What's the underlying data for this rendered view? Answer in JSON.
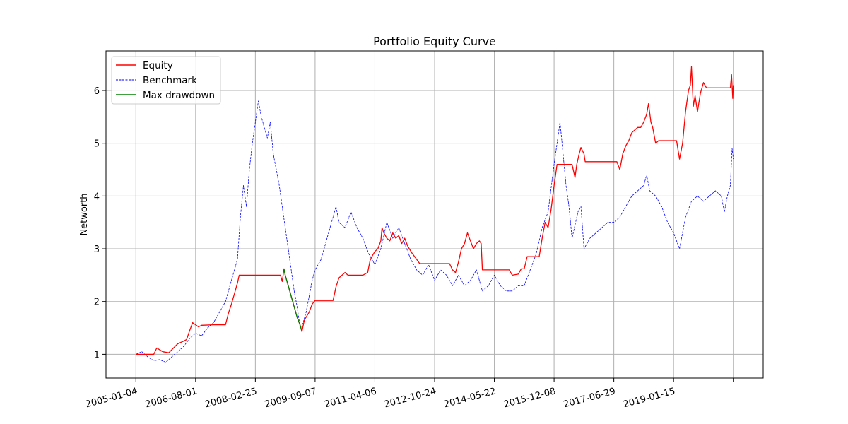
{
  "chart_data": {
    "type": "line",
    "title": "Portfolio Equity Curve",
    "xlabel": "",
    "ylabel": "Networth",
    "x_ticks": [
      "2005-01-04",
      "2006-08-01",
      "2008-02-25",
      "2009-09-07",
      "2011-04-06",
      "2012-10-24",
      "2014-05-22",
      "2015-12-08",
      "2017-06-29",
      "2019-01-15",
      ""
    ],
    "y_ticks": [
      1,
      2,
      3,
      4,
      5,
      6
    ],
    "xlim": [
      -0.5,
      10.5
    ],
    "ylim": [
      0.55,
      6.75
    ],
    "grid": true,
    "legend_position": "top-left",
    "series": [
      {
        "name": "Equity",
        "color": "#ff0000",
        "style": "solid",
        "points": [
          [
            0,
            1.0
          ],
          [
            0.15,
            1.0
          ],
          [
            0.3,
            1.0
          ],
          [
            0.35,
            1.12
          ],
          [
            0.45,
            1.05
          ],
          [
            0.55,
            1.03
          ],
          [
            0.7,
            1.2
          ],
          [
            0.8,
            1.25
          ],
          [
            0.85,
            1.28
          ],
          [
            0.9,
            1.45
          ],
          [
            0.95,
            1.6
          ],
          [
            1.05,
            1.52
          ],
          [
            1.1,
            1.55
          ],
          [
            1.3,
            1.56
          ],
          [
            1.5,
            1.56
          ],
          [
            1.55,
            1.78
          ],
          [
            1.6,
            1.95
          ],
          [
            1.65,
            2.15
          ],
          [
            1.7,
            2.35
          ],
          [
            1.73,
            2.5
          ],
          [
            1.9,
            2.5
          ],
          [
            2.1,
            2.5
          ],
          [
            2.3,
            2.5
          ],
          [
            2.42,
            2.5
          ],
          [
            2.45,
            2.38
          ],
          [
            2.48,
            2.62
          ],
          [
            2.5,
            2.5
          ],
          [
            2.55,
            2.3
          ],
          [
            2.6,
            2.1
          ],
          [
            2.65,
            1.9
          ],
          [
            2.7,
            1.7
          ],
          [
            2.75,
            1.55
          ],
          [
            2.78,
            1.43
          ],
          [
            2.82,
            1.65
          ],
          [
            2.9,
            1.8
          ],
          [
            2.95,
            1.95
          ],
          [
            3.0,
            2.02
          ],
          [
            3.2,
            2.02
          ],
          [
            3.3,
            2.02
          ],
          [
            3.35,
            2.28
          ],
          [
            3.4,
            2.45
          ],
          [
            3.45,
            2.5
          ],
          [
            3.5,
            2.55
          ],
          [
            3.55,
            2.5
          ],
          [
            3.65,
            2.5
          ],
          [
            3.8,
            2.5
          ],
          [
            3.88,
            2.55
          ],
          [
            3.92,
            2.78
          ],
          [
            3.95,
            2.85
          ],
          [
            4.0,
            2.95
          ],
          [
            4.05,
            3.0
          ],
          [
            4.1,
            3.15
          ],
          [
            4.12,
            3.4
          ],
          [
            4.15,
            3.3
          ],
          [
            4.2,
            3.2
          ],
          [
            4.25,
            3.15
          ],
          [
            4.3,
            3.3
          ],
          [
            4.35,
            3.2
          ],
          [
            4.4,
            3.25
          ],
          [
            4.45,
            3.1
          ],
          [
            4.5,
            3.2
          ],
          [
            4.55,
            3.05
          ],
          [
            4.62,
            2.92
          ],
          [
            4.7,
            2.8
          ],
          [
            4.75,
            2.72
          ],
          [
            4.9,
            2.72
          ],
          [
            5.1,
            2.72
          ],
          [
            5.2,
            2.72
          ],
          [
            5.25,
            2.72
          ],
          [
            5.3,
            2.6
          ],
          [
            5.35,
            2.55
          ],
          [
            5.4,
            2.75
          ],
          [
            5.45,
            3.0
          ],
          [
            5.5,
            3.1
          ],
          [
            5.55,
            3.3
          ],
          [
            5.6,
            3.15
          ],
          [
            5.65,
            3.0
          ],
          [
            5.7,
            3.1
          ],
          [
            5.75,
            3.15
          ],
          [
            5.78,
            3.1
          ],
          [
            5.8,
            2.6
          ],
          [
            6.0,
            2.6
          ],
          [
            6.2,
            2.6
          ],
          [
            6.25,
            2.6
          ],
          [
            6.3,
            2.5
          ],
          [
            6.4,
            2.52
          ],
          [
            6.45,
            2.62
          ],
          [
            6.5,
            2.62
          ],
          [
            6.55,
            2.85
          ],
          [
            6.7,
            2.85
          ],
          [
            6.75,
            2.85
          ],
          [
            6.8,
            3.2
          ],
          [
            6.85,
            3.5
          ],
          [
            6.9,
            3.4
          ],
          [
            6.95,
            3.75
          ],
          [
            7.0,
            4.2
          ],
          [
            7.05,
            4.6
          ],
          [
            7.15,
            4.6
          ],
          [
            7.3,
            4.6
          ],
          [
            7.35,
            4.35
          ],
          [
            7.38,
            4.6
          ],
          [
            7.42,
            4.8
          ],
          [
            7.45,
            4.92
          ],
          [
            7.5,
            4.8
          ],
          [
            7.52,
            4.65
          ],
          [
            7.7,
            4.65
          ],
          [
            7.85,
            4.65
          ],
          [
            8.0,
            4.65
          ],
          [
            8.05,
            4.65
          ],
          [
            8.1,
            4.5
          ],
          [
            8.15,
            4.8
          ],
          [
            8.2,
            4.95
          ],
          [
            8.25,
            5.05
          ],
          [
            8.3,
            5.2
          ],
          [
            8.35,
            5.25
          ],
          [
            8.4,
            5.3
          ],
          [
            8.45,
            5.3
          ],
          [
            8.5,
            5.4
          ],
          [
            8.55,
            5.55
          ],
          [
            8.58,
            5.75
          ],
          [
            8.62,
            5.4
          ],
          [
            8.65,
            5.3
          ],
          [
            8.7,
            5.0
          ],
          [
            8.75,
            5.05
          ],
          [
            8.9,
            5.05
          ],
          [
            9.0,
            5.05
          ],
          [
            9.05,
            5.05
          ],
          [
            9.1,
            4.7
          ],
          [
            9.15,
            5.0
          ],
          [
            9.2,
            5.6
          ],
          [
            9.25,
            6.0
          ],
          [
            9.28,
            6.1
          ],
          [
            9.3,
            6.45
          ],
          [
            9.33,
            5.7
          ],
          [
            9.36,
            5.9
          ],
          [
            9.4,
            5.6
          ],
          [
            9.45,
            5.95
          ],
          [
            9.5,
            6.15
          ],
          [
            9.55,
            6.05
          ],
          [
            9.7,
            6.05
          ],
          [
            9.9,
            6.05
          ],
          [
            9.95,
            6.05
          ],
          [
            9.97,
            6.3
          ],
          [
            9.99,
            5.85
          ],
          [
            10.0,
            6.1
          ]
        ]
      },
      {
        "name": "Benchmark",
        "color": "#0000ff",
        "style": "dashed",
        "points": [
          [
            0,
            1.0
          ],
          [
            0.1,
            1.05
          ],
          [
            0.2,
            0.95
          ],
          [
            0.3,
            0.88
          ],
          [
            0.4,
            0.9
          ],
          [
            0.5,
            0.85
          ],
          [
            0.6,
            0.95
          ],
          [
            0.7,
            1.05
          ],
          [
            0.8,
            1.15
          ],
          [
            0.9,
            1.3
          ],
          [
            1.0,
            1.4
          ],
          [
            1.1,
            1.35
          ],
          [
            1.2,
            1.5
          ],
          [
            1.3,
            1.6
          ],
          [
            1.4,
            1.8
          ],
          [
            1.5,
            2.0
          ],
          [
            1.6,
            2.4
          ],
          [
            1.7,
            2.8
          ],
          [
            1.75,
            3.6
          ],
          [
            1.8,
            4.2
          ],
          [
            1.85,
            3.8
          ],
          [
            1.9,
            4.5
          ],
          [
            1.95,
            5.0
          ],
          [
            2.0,
            5.4
          ],
          [
            2.05,
            5.8
          ],
          [
            2.1,
            5.5
          ],
          [
            2.15,
            5.3
          ],
          [
            2.2,
            5.1
          ],
          [
            2.25,
            5.4
          ],
          [
            2.3,
            4.8
          ],
          [
            2.35,
            4.5
          ],
          [
            2.4,
            4.2
          ],
          [
            2.45,
            3.8
          ],
          [
            2.5,
            3.4
          ],
          [
            2.55,
            3.0
          ],
          [
            2.6,
            2.6
          ],
          [
            2.65,
            2.2
          ],
          [
            2.7,
            1.9
          ],
          [
            2.75,
            1.5
          ],
          [
            2.8,
            1.6
          ],
          [
            2.85,
            1.8
          ],
          [
            2.9,
            2.1
          ],
          [
            2.95,
            2.4
          ],
          [
            3.0,
            2.6
          ],
          [
            3.1,
            2.8
          ],
          [
            3.2,
            3.2
          ],
          [
            3.3,
            3.6
          ],
          [
            3.35,
            3.8
          ],
          [
            3.4,
            3.5
          ],
          [
            3.5,
            3.4
          ],
          [
            3.6,
            3.7
          ],
          [
            3.7,
            3.4
          ],
          [
            3.8,
            3.2
          ],
          [
            3.9,
            2.9
          ],
          [
            4.0,
            2.7
          ],
          [
            4.1,
            3.0
          ],
          [
            4.2,
            3.5
          ],
          [
            4.3,
            3.2
          ],
          [
            4.4,
            3.4
          ],
          [
            4.5,
            3.1
          ],
          [
            4.6,
            2.8
          ],
          [
            4.7,
            2.6
          ],
          [
            4.8,
            2.5
          ],
          [
            4.9,
            2.7
          ],
          [
            5.0,
            2.4
          ],
          [
            5.1,
            2.6
          ],
          [
            5.2,
            2.5
          ],
          [
            5.3,
            2.3
          ],
          [
            5.4,
            2.5
          ],
          [
            5.5,
            2.3
          ],
          [
            5.6,
            2.4
          ],
          [
            5.7,
            2.6
          ],
          [
            5.8,
            2.2
          ],
          [
            5.9,
            2.3
          ],
          [
            6.0,
            2.5
          ],
          [
            6.1,
            2.3
          ],
          [
            6.2,
            2.2
          ],
          [
            6.3,
            2.2
          ],
          [
            6.4,
            2.3
          ],
          [
            6.5,
            2.3
          ],
          [
            6.6,
            2.6
          ],
          [
            6.7,
            2.9
          ],
          [
            6.8,
            3.4
          ],
          [
            6.9,
            3.7
          ],
          [
            7.0,
            4.6
          ],
          [
            7.05,
            5.0
          ],
          [
            7.1,
            5.4
          ],
          [
            7.15,
            4.8
          ],
          [
            7.2,
            4.2
          ],
          [
            7.25,
            3.8
          ],
          [
            7.3,
            3.2
          ],
          [
            7.4,
            3.7
          ],
          [
            7.45,
            3.8
          ],
          [
            7.5,
            3.0
          ],
          [
            7.6,
            3.2
          ],
          [
            7.7,
            3.3
          ],
          [
            7.8,
            3.4
          ],
          [
            7.9,
            3.5
          ],
          [
            8.0,
            3.5
          ],
          [
            8.1,
            3.6
          ],
          [
            8.2,
            3.8
          ],
          [
            8.3,
            4.0
          ],
          [
            8.4,
            4.1
          ],
          [
            8.5,
            4.2
          ],
          [
            8.55,
            4.4
          ],
          [
            8.6,
            4.1
          ],
          [
            8.7,
            4.0
          ],
          [
            8.8,
            3.8
          ],
          [
            8.9,
            3.5
          ],
          [
            9.0,
            3.3
          ],
          [
            9.1,
            3.0
          ],
          [
            9.2,
            3.6
          ],
          [
            9.3,
            3.9
          ],
          [
            9.4,
            4.0
          ],
          [
            9.5,
            3.9
          ],
          [
            9.6,
            4.0
          ],
          [
            9.7,
            4.1
          ],
          [
            9.8,
            4.0
          ],
          [
            9.85,
            3.7
          ],
          [
            9.9,
            4.0
          ],
          [
            9.95,
            4.2
          ],
          [
            9.98,
            4.9
          ],
          [
            10.0,
            4.7
          ]
        ]
      },
      {
        "name": "Max drawdown",
        "color": "#008000",
        "style": "solid",
        "points": [
          [
            2.48,
            2.62
          ],
          [
            2.5,
            2.5
          ],
          [
            2.55,
            2.3
          ],
          [
            2.6,
            2.1
          ],
          [
            2.65,
            1.9
          ],
          [
            2.7,
            1.7
          ],
          [
            2.75,
            1.55
          ],
          [
            2.78,
            1.43
          ]
        ]
      }
    ]
  }
}
